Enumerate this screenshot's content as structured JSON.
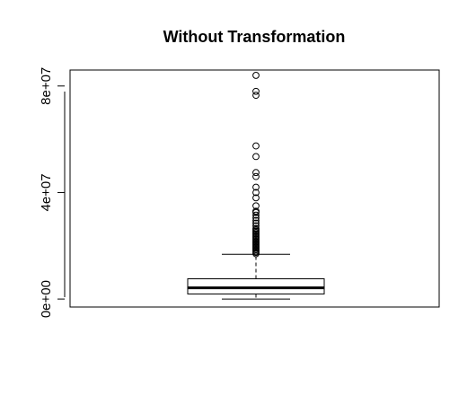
{
  "chart_data": {
    "type": "boxplot",
    "title": "Without Transformation",
    "xlabel": "",
    "ylabel": "",
    "ylim": [
      -3000000,
      86000000
    ],
    "y_ticks": [
      {
        "value": 0,
        "label": "0e+00"
      },
      {
        "value": 40000000,
        "label": "4e+07"
      },
      {
        "value": 80000000,
        "label": "8e+07"
      }
    ],
    "box": {
      "whisker_low": 0,
      "q1": 1900000,
      "median": 4200000,
      "q3": 7600000,
      "whisker_high": 16800000
    },
    "outliers": [
      84000000,
      78000000,
      76500000,
      57500000,
      53500000,
      47500000,
      46000000,
      42000000,
      40000000,
      38000000,
      35000000,
      33000000,
      32500000,
      31500000,
      30500000,
      29500000,
      28500000,
      27500000,
      26500000,
      26000000,
      25500000,
      25000000,
      24500000,
      24000000,
      23500000,
      23000000,
      22500000,
      22000000,
      21500000,
      21000000,
      20500000,
      20000000,
      19500000,
      19000000,
      18500000,
      18000000,
      17500000,
      17000000
    ],
    "colors": {
      "stroke": "#000000",
      "background": "#ffffff"
    }
  }
}
